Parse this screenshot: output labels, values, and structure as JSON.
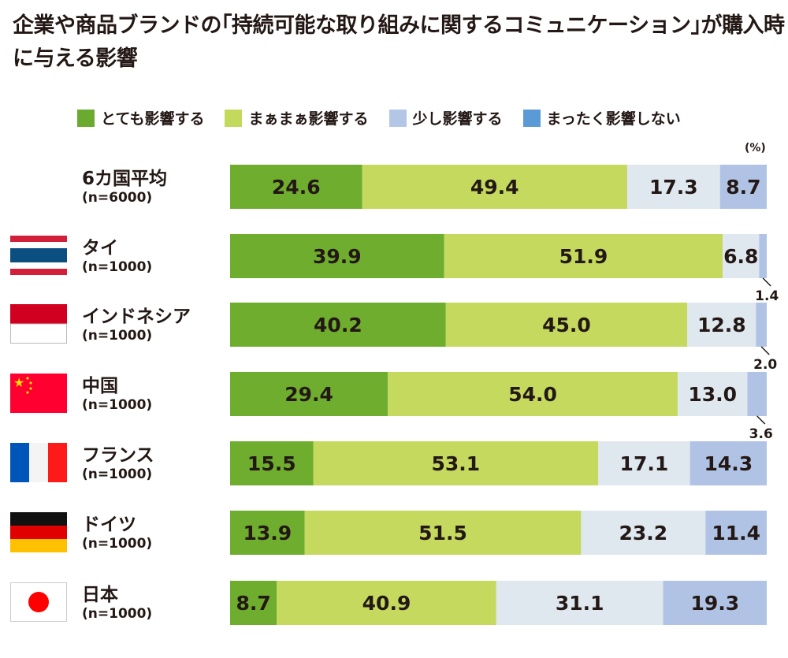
{
  "chart_data": {
    "type": "bar",
    "orientation": "horizontal-stacked-100",
    "title": "企業や商品ブランドの｢持続可能な取り組みに関するコミュニケーション｣が購入時に与える影響",
    "unit": "(%)",
    "legend_position": "top",
    "categories": [
      {
        "name": "6カ国平均",
        "n": "(n=6000)",
        "flag": "none"
      },
      {
        "name": "タイ",
        "n": "(n=1000)",
        "flag": "thailand"
      },
      {
        "name": "インドネシア",
        "n": "(n=1000)",
        "flag": "indonesia"
      },
      {
        "name": "中国",
        "n": "(n=1000)",
        "flag": "china"
      },
      {
        "name": "フランス",
        "n": "(n=1000)",
        "flag": "france"
      },
      {
        "name": "ドイツ",
        "n": "(n=1000)",
        "flag": "germany"
      },
      {
        "name": "日本",
        "n": "(n=1000)",
        "flag": "japan"
      }
    ],
    "series": [
      {
        "name": "とても影響する",
        "legend_color": "#6aaa2e",
        "bar_color": "#6fad2e",
        "values": [
          24.6,
          39.9,
          40.2,
          29.4,
          15.5,
          13.9,
          8.7
        ]
      },
      {
        "name": "まぁまぁ影響する",
        "legend_color": "#c3d95c",
        "bar_color": "#c4d95e",
        "values": [
          49.4,
          51.9,
          45.0,
          54.0,
          53.1,
          51.5,
          40.9
        ]
      },
      {
        "name": "少し影響する",
        "legend_color": "#b4c6e6",
        "bar_color": "#dfe7ef",
        "values": [
          17.3,
          6.8,
          12.8,
          13.0,
          17.1,
          23.2,
          31.1
        ]
      },
      {
        "name": "まったく影響しない",
        "legend_color": "#5b9bd5",
        "bar_color": "#b0c3e4",
        "values": [
          8.7,
          1.4,
          2.0,
          3.6,
          14.3,
          11.4,
          19.3
        ]
      }
    ],
    "value_labels": [
      [
        "24.6",
        "49.4",
        "17.3",
        "8.7"
      ],
      [
        "39.9",
        "51.9",
        "6.8",
        "1.4"
      ],
      [
        "40.2",
        "45.0",
        "12.8",
        "2.0"
      ],
      [
        "29.4",
        "54.0",
        "13.0",
        "3.6"
      ],
      [
        "15.5",
        "53.1",
        "17.1",
        "14.3"
      ],
      [
        "13.9",
        "51.5",
        "23.2",
        "11.4"
      ],
      [
        "8.7",
        "40.9",
        "31.1",
        "19.3"
      ]
    ]
  }
}
